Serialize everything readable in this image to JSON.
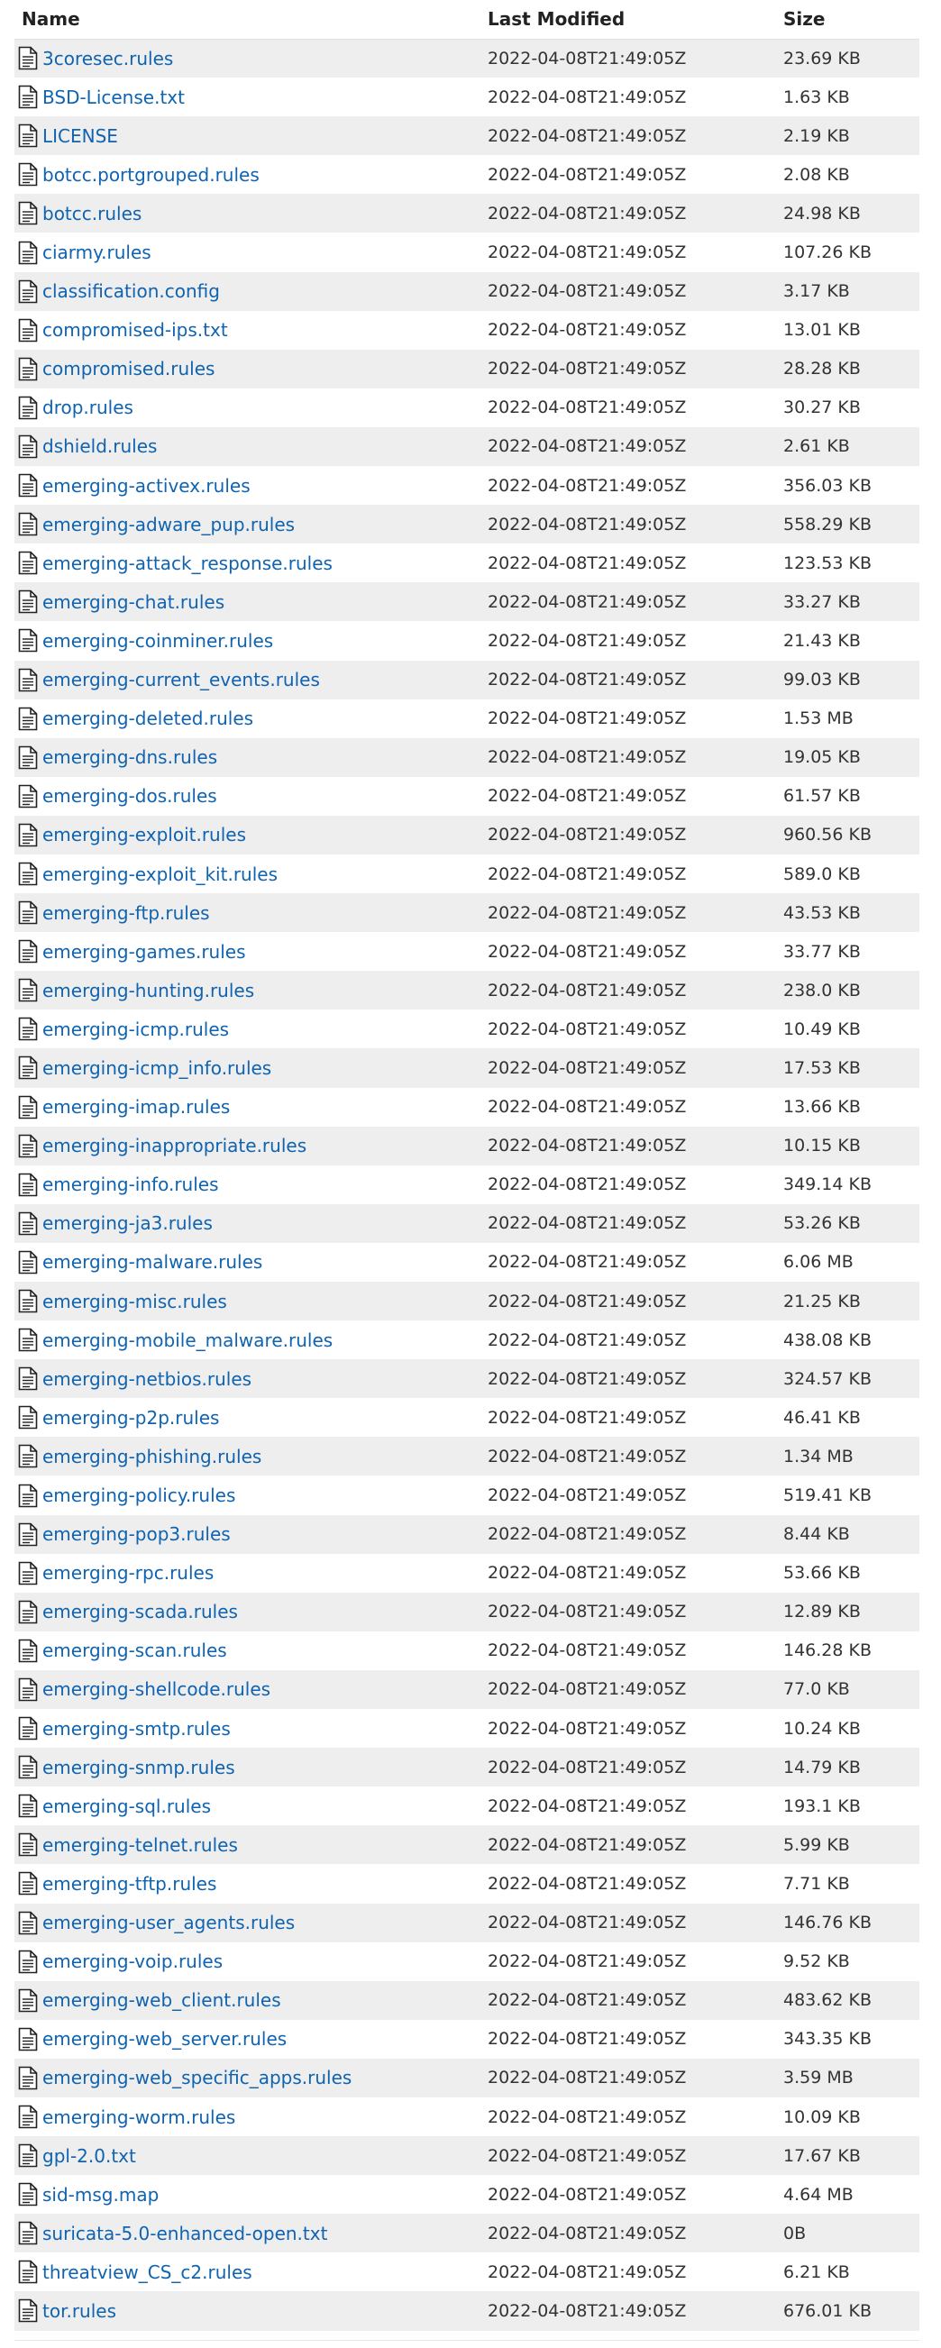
{
  "columns": {
    "name": "Name",
    "modified": "Last Modified",
    "size": "Size"
  },
  "icon": "file-document-icon",
  "colors": {
    "link": "#0f63b0",
    "row_stripe": "#eeeeee",
    "text": "#333333"
  },
  "files": [
    {
      "name": "3coresec.rules",
      "modified": "2022-04-08T21:49:05Z",
      "size": "23.69 KB"
    },
    {
      "name": "BSD-License.txt",
      "modified": "2022-04-08T21:49:05Z",
      "size": "1.63 KB"
    },
    {
      "name": "LICENSE",
      "modified": "2022-04-08T21:49:05Z",
      "size": "2.19 KB"
    },
    {
      "name": "botcc.portgrouped.rules",
      "modified": "2022-04-08T21:49:05Z",
      "size": "2.08 KB"
    },
    {
      "name": "botcc.rules",
      "modified": "2022-04-08T21:49:05Z",
      "size": "24.98 KB"
    },
    {
      "name": "ciarmy.rules",
      "modified": "2022-04-08T21:49:05Z",
      "size": "107.26 KB"
    },
    {
      "name": "classification.config",
      "modified": "2022-04-08T21:49:05Z",
      "size": "3.17 KB"
    },
    {
      "name": "compromised-ips.txt",
      "modified": "2022-04-08T21:49:05Z",
      "size": "13.01 KB"
    },
    {
      "name": "compromised.rules",
      "modified": "2022-04-08T21:49:05Z",
      "size": "28.28 KB"
    },
    {
      "name": "drop.rules",
      "modified": "2022-04-08T21:49:05Z",
      "size": "30.27 KB"
    },
    {
      "name": "dshield.rules",
      "modified": "2022-04-08T21:49:05Z",
      "size": "2.61 KB"
    },
    {
      "name": "emerging-activex.rules",
      "modified": "2022-04-08T21:49:05Z",
      "size": "356.03 KB"
    },
    {
      "name": "emerging-adware_pup.rules",
      "modified": "2022-04-08T21:49:05Z",
      "size": "558.29 KB"
    },
    {
      "name": "emerging-attack_response.rules",
      "modified": "2022-04-08T21:49:05Z",
      "size": "123.53 KB"
    },
    {
      "name": "emerging-chat.rules",
      "modified": "2022-04-08T21:49:05Z",
      "size": "33.27 KB"
    },
    {
      "name": "emerging-coinminer.rules",
      "modified": "2022-04-08T21:49:05Z",
      "size": "21.43 KB"
    },
    {
      "name": "emerging-current_events.rules",
      "modified": "2022-04-08T21:49:05Z",
      "size": "99.03 KB"
    },
    {
      "name": "emerging-deleted.rules",
      "modified": "2022-04-08T21:49:05Z",
      "size": "1.53 MB"
    },
    {
      "name": "emerging-dns.rules",
      "modified": "2022-04-08T21:49:05Z",
      "size": "19.05 KB"
    },
    {
      "name": "emerging-dos.rules",
      "modified": "2022-04-08T21:49:05Z",
      "size": "61.57 KB"
    },
    {
      "name": "emerging-exploit.rules",
      "modified": "2022-04-08T21:49:05Z",
      "size": "960.56 KB"
    },
    {
      "name": "emerging-exploit_kit.rules",
      "modified": "2022-04-08T21:49:05Z",
      "size": "589.0 KB"
    },
    {
      "name": "emerging-ftp.rules",
      "modified": "2022-04-08T21:49:05Z",
      "size": "43.53 KB"
    },
    {
      "name": "emerging-games.rules",
      "modified": "2022-04-08T21:49:05Z",
      "size": "33.77 KB"
    },
    {
      "name": "emerging-hunting.rules",
      "modified": "2022-04-08T21:49:05Z",
      "size": "238.0 KB"
    },
    {
      "name": "emerging-icmp.rules",
      "modified": "2022-04-08T21:49:05Z",
      "size": "10.49 KB"
    },
    {
      "name": "emerging-icmp_info.rules",
      "modified": "2022-04-08T21:49:05Z",
      "size": "17.53 KB"
    },
    {
      "name": "emerging-imap.rules",
      "modified": "2022-04-08T21:49:05Z",
      "size": "13.66 KB"
    },
    {
      "name": "emerging-inappropriate.rules",
      "modified": "2022-04-08T21:49:05Z",
      "size": "10.15 KB"
    },
    {
      "name": "emerging-info.rules",
      "modified": "2022-04-08T21:49:05Z",
      "size": "349.14 KB"
    },
    {
      "name": "emerging-ja3.rules",
      "modified": "2022-04-08T21:49:05Z",
      "size": "53.26 KB"
    },
    {
      "name": "emerging-malware.rules",
      "modified": "2022-04-08T21:49:05Z",
      "size": "6.06 MB"
    },
    {
      "name": "emerging-misc.rules",
      "modified": "2022-04-08T21:49:05Z",
      "size": "21.25 KB"
    },
    {
      "name": "emerging-mobile_malware.rules",
      "modified": "2022-04-08T21:49:05Z",
      "size": "438.08 KB"
    },
    {
      "name": "emerging-netbios.rules",
      "modified": "2022-04-08T21:49:05Z",
      "size": "324.57 KB"
    },
    {
      "name": "emerging-p2p.rules",
      "modified": "2022-04-08T21:49:05Z",
      "size": "46.41 KB"
    },
    {
      "name": "emerging-phishing.rules",
      "modified": "2022-04-08T21:49:05Z",
      "size": "1.34 MB"
    },
    {
      "name": "emerging-policy.rules",
      "modified": "2022-04-08T21:49:05Z",
      "size": "519.41 KB"
    },
    {
      "name": "emerging-pop3.rules",
      "modified": "2022-04-08T21:49:05Z",
      "size": "8.44 KB"
    },
    {
      "name": "emerging-rpc.rules",
      "modified": "2022-04-08T21:49:05Z",
      "size": "53.66 KB"
    },
    {
      "name": "emerging-scada.rules",
      "modified": "2022-04-08T21:49:05Z",
      "size": "12.89 KB"
    },
    {
      "name": "emerging-scan.rules",
      "modified": "2022-04-08T21:49:05Z",
      "size": "146.28 KB"
    },
    {
      "name": "emerging-shellcode.rules",
      "modified": "2022-04-08T21:49:05Z",
      "size": "77.0 KB"
    },
    {
      "name": "emerging-smtp.rules",
      "modified": "2022-04-08T21:49:05Z",
      "size": "10.24 KB"
    },
    {
      "name": "emerging-snmp.rules",
      "modified": "2022-04-08T21:49:05Z",
      "size": "14.79 KB"
    },
    {
      "name": "emerging-sql.rules",
      "modified": "2022-04-08T21:49:05Z",
      "size": "193.1 KB"
    },
    {
      "name": "emerging-telnet.rules",
      "modified": "2022-04-08T21:49:05Z",
      "size": "5.99 KB"
    },
    {
      "name": "emerging-tftp.rules",
      "modified": "2022-04-08T21:49:05Z",
      "size": "7.71 KB"
    },
    {
      "name": "emerging-user_agents.rules",
      "modified": "2022-04-08T21:49:05Z",
      "size": "146.76 KB"
    },
    {
      "name": "emerging-voip.rules",
      "modified": "2022-04-08T21:49:05Z",
      "size": "9.52 KB"
    },
    {
      "name": "emerging-web_client.rules",
      "modified": "2022-04-08T21:49:05Z",
      "size": "483.62 KB"
    },
    {
      "name": "emerging-web_server.rules",
      "modified": "2022-04-08T21:49:05Z",
      "size": "343.35 KB"
    },
    {
      "name": "emerging-web_specific_apps.rules",
      "modified": "2022-04-08T21:49:05Z",
      "size": "3.59 MB"
    },
    {
      "name": "emerging-worm.rules",
      "modified": "2022-04-08T21:49:05Z",
      "size": "10.09 KB"
    },
    {
      "name": "gpl-2.0.txt",
      "modified": "2022-04-08T21:49:05Z",
      "size": "17.67 KB"
    },
    {
      "name": "sid-msg.map",
      "modified": "2022-04-08T21:49:05Z",
      "size": "4.64 MB"
    },
    {
      "name": "suricata-5.0-enhanced-open.txt",
      "modified": "2022-04-08T21:49:05Z",
      "size": "0B"
    },
    {
      "name": "threatview_CS_c2.rules",
      "modified": "2022-04-08T21:49:05Z",
      "size": "6.21 KB"
    },
    {
      "name": "tor.rules",
      "modified": "2022-04-08T21:49:05Z",
      "size": "676.01 KB"
    }
  ]
}
